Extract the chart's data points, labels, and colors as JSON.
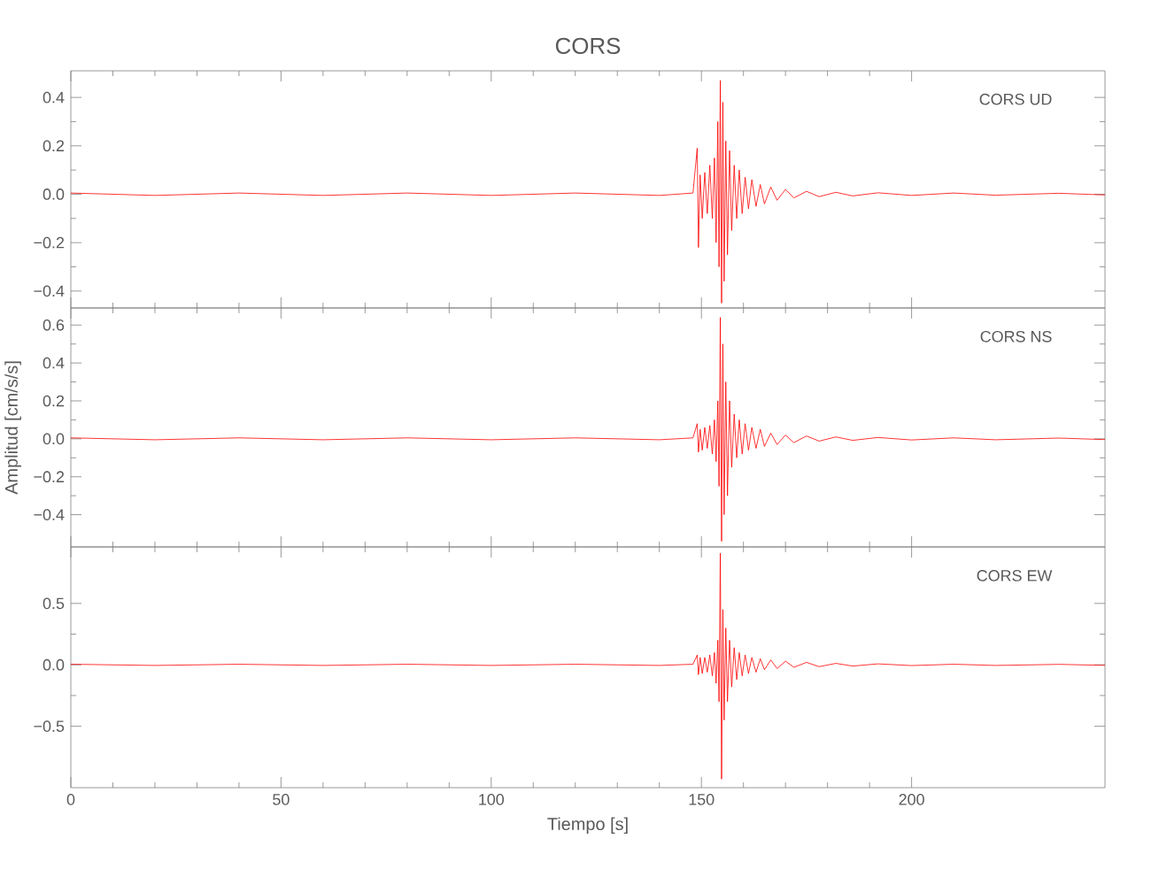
{
  "chart_data": [
    {
      "type": "line",
      "title": "CORS",
      "annotations": [
        "CORS   UD"
      ],
      "tick_labels": "y",
      "xlim": [
        0,
        246
      ],
      "xticks": [
        0,
        50,
        100,
        150,
        200
      ],
      "ylim": [
        -0.47,
        0.51
      ],
      "yticks": [
        {
          "value": -0.4,
          "label": "−0.4"
        },
        {
          "value": -0.2,
          "label": "−0.2"
        },
        {
          "value": 0,
          "label": "0.0"
        },
        {
          "value": 0.2,
          "label": "0.2"
        },
        {
          "value": 0.4,
          "label": "0.4"
        }
      ],
      "series": [
        {
          "color": "#ff0000",
          "x": [
            0,
            20,
            40,
            60,
            80,
            100,
            120,
            140,
            148,
            149,
            149.3,
            149.7,
            150.2,
            150.8,
            151.4,
            152,
            152.6,
            153.1,
            153.5,
            153.9,
            154.2,
            154.5,
            154.8,
            155.1,
            155.4,
            155.8,
            156.2,
            156.7,
            157.2,
            157.8,
            158.4,
            159,
            159.7,
            160.4,
            161.2,
            162,
            163,
            164,
            165,
            166.5,
            168,
            170,
            172,
            175,
            178,
            182,
            186,
            192,
            200,
            210,
            220,
            235,
            246
          ],
          "values": [
            0.005,
            -0.005,
            0.005,
            -0.005,
            0.005,
            -0.005,
            0.005,
            -0.005,
            0.005,
            0.19,
            -0.22,
            0.08,
            -0.1,
            0.09,
            -0.08,
            0.12,
            -0.1,
            0.15,
            -0.2,
            0.3,
            -0.3,
            0.47,
            -0.45,
            0.38,
            -0.36,
            0.22,
            -0.25,
            0.18,
            -0.15,
            0.12,
            -0.1,
            0.1,
            -0.08,
            0.07,
            -0.06,
            0.06,
            -0.05,
            0.04,
            -0.04,
            0.03,
            -0.025,
            0.02,
            -0.015,
            0.012,
            -0.01,
            0.008,
            -0.007,
            0.006,
            -0.005,
            0.005,
            -0.004,
            0.004,
            -0.003
          ]
        }
      ]
    },
    {
      "type": "line",
      "ylabel": "Amplitud  [cm/s/s]",
      "annotations": [
        "CORS   NS"
      ],
      "tick_labels": "y",
      "xlim": [
        0,
        246
      ],
      "xticks": [
        0,
        50,
        100,
        150,
        200
      ],
      "ylim": [
        -0.57,
        0.69
      ],
      "yticks": [
        {
          "value": -0.4,
          "label": "−0.4"
        },
        {
          "value": -0.2,
          "label": "−0.2"
        },
        {
          "value": 0,
          "label": "0.0"
        },
        {
          "value": 0.2,
          "label": "0.2"
        },
        {
          "value": 0.4,
          "label": "0.4"
        },
        {
          "value": 0.6,
          "label": "0.6"
        }
      ],
      "series": [
        {
          "color": "#ff0000",
          "x": [
            0,
            20,
            40,
            60,
            80,
            100,
            120,
            140,
            148,
            149,
            149.3,
            149.7,
            150.2,
            150.8,
            151.4,
            152,
            152.6,
            153.1,
            153.5,
            153.9,
            154.2,
            154.5,
            154.8,
            155.1,
            155.4,
            155.8,
            156.2,
            156.7,
            157.2,
            157.8,
            158.4,
            159,
            159.7,
            160.4,
            161.2,
            162,
            163,
            164,
            165,
            166.5,
            168,
            170,
            172,
            175,
            178,
            182,
            186,
            192,
            200,
            210,
            220,
            235,
            246
          ],
          "values": [
            0.005,
            -0.005,
            0.005,
            -0.005,
            0.005,
            -0.005,
            0.005,
            -0.005,
            0.005,
            0.08,
            -0.07,
            0.05,
            -0.06,
            0.06,
            -0.05,
            0.07,
            -0.08,
            0.1,
            -0.12,
            0.2,
            -0.25,
            0.64,
            -0.54,
            0.5,
            -0.4,
            0.3,
            -0.3,
            0.2,
            -0.15,
            0.13,
            -0.1,
            0.1,
            -0.08,
            0.08,
            -0.06,
            0.06,
            -0.05,
            0.05,
            -0.04,
            0.03,
            -0.03,
            0.02,
            -0.02,
            0.015,
            -0.012,
            0.01,
            -0.008,
            0.007,
            -0.006,
            0.005,
            -0.005,
            0.004,
            -0.004
          ]
        }
      ]
    },
    {
      "type": "line",
      "xlabel": "Tiempo  [s]",
      "annotations": [
        "CORS   EW"
      ],
      "xlim": [
        0,
        246
      ],
      "xticks": [
        0,
        50,
        100,
        150,
        200
      ],
      "ylim": [
        -1.0,
        0.96
      ],
      "yticks": [
        {
          "value": -0.5,
          "label": "−0.5"
        },
        {
          "value": 0,
          "label": "0.0"
        },
        {
          "value": 0.5,
          "label": "0.5"
        }
      ],
      "series": [
        {
          "color": "#ff0000",
          "x": [
            0,
            20,
            40,
            60,
            80,
            100,
            120,
            140,
            148,
            149,
            149.3,
            149.7,
            150.2,
            150.8,
            151.4,
            152,
            152.6,
            153.1,
            153.5,
            153.9,
            154.2,
            154.5,
            154.8,
            155.1,
            155.4,
            155.8,
            156.2,
            156.7,
            157.2,
            157.8,
            158.4,
            159,
            159.7,
            160.4,
            161.2,
            162,
            163,
            164,
            165,
            166.5,
            168,
            170,
            172,
            175,
            178,
            182,
            186,
            192,
            200,
            210,
            220,
            235,
            246
          ],
          "values": [
            0.005,
            -0.005,
            0.005,
            -0.005,
            0.005,
            -0.005,
            0.005,
            -0.005,
            0.005,
            0.08,
            -0.08,
            0.06,
            -0.07,
            0.06,
            -0.06,
            0.08,
            -0.09,
            0.1,
            -0.15,
            0.2,
            -0.3,
            0.91,
            -0.93,
            0.45,
            -0.45,
            0.3,
            -0.3,
            0.2,
            -0.18,
            0.14,
            -0.12,
            0.1,
            -0.09,
            0.08,
            -0.07,
            0.06,
            -0.06,
            0.05,
            -0.04,
            0.04,
            -0.03,
            0.03,
            -0.02,
            0.02,
            -0.015,
            0.012,
            -0.01,
            0.008,
            -0.006,
            0.005,
            -0.005,
            0.004,
            -0.004
          ]
        }
      ]
    }
  ]
}
